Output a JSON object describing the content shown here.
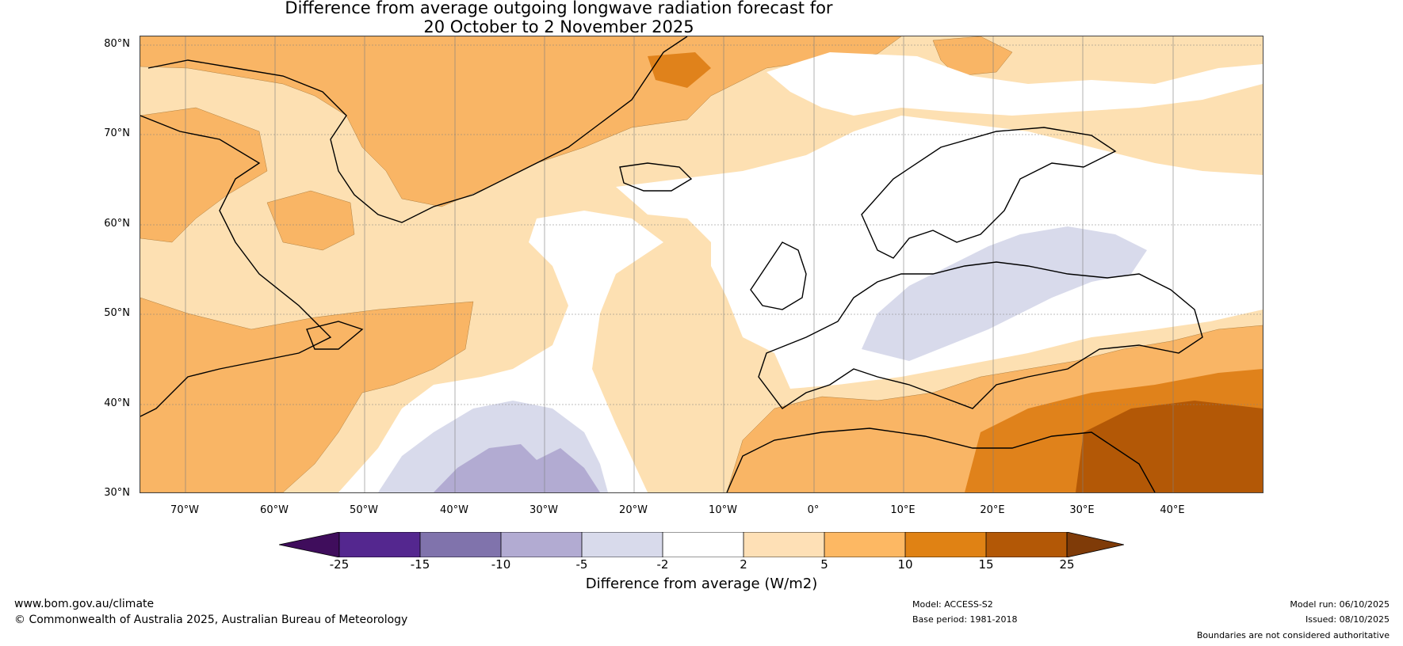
{
  "title": {
    "line1": "Difference from average outgoing longwave radiation forecast for",
    "line2": "20 October to 2 November 2025"
  },
  "map": {
    "lat_labels": [
      "80°N",
      "70°N",
      "60°N",
      "50°N",
      "40°N",
      "30°N"
    ],
    "lon_labels": [
      "70°W",
      "60°W",
      "50°W",
      "40°W",
      "30°W",
      "20°W",
      "10°W",
      "0°",
      "10°E",
      "20°E",
      "30°E",
      "40°E"
    ],
    "lat_range": [
      30,
      81
    ],
    "lon_range": [
      -75,
      50
    ],
    "coastline_color": "#000000",
    "border_color": "#808080"
  },
  "colorbar": {
    "title": "Difference from average (W/m2)",
    "ticks": [
      "-25",
      "-15",
      "-10",
      "-5",
      "-2",
      "2",
      "5",
      "10",
      "15",
      "25"
    ],
    "colors": [
      "#3f0d5c",
      "#54278f",
      "#8073ac",
      "#b2abd2",
      "#d8daeb",
      "#ffffff",
      "#fee0b6",
      "#fdb863",
      "#e08214",
      "#b35806",
      "#7f3b08"
    ]
  },
  "footer": {
    "website": "www.bom.gov.au/climate",
    "copyright": "© Commonwealth of Australia 2025, Australian Bureau of Meteorology",
    "model": "Model: ACCESS-S2",
    "base_period": "Base period: 1981-2018",
    "model_run": "Model run: 06/10/2025",
    "issued": "Issued: 08/10/2025",
    "disclaimer": "Boundaries are not considered authoritative"
  }
}
